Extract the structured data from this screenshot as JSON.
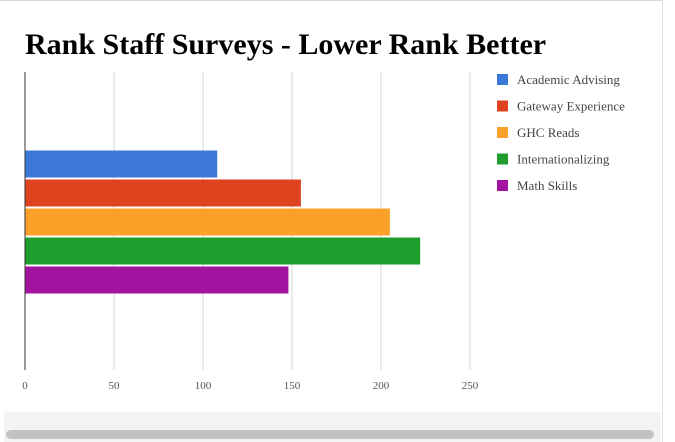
{
  "chart_data": {
    "type": "bar",
    "orientation": "horizontal",
    "title": "Rank Staff Surveys - Lower Rank Better",
    "categories": [
      ""
    ],
    "series": [
      {
        "name": "Academic Advising",
        "values": [
          108
        ],
        "color": "#3c78d8"
      },
      {
        "name": "Gateway Experience",
        "values": [
          155
        ],
        "color": "#e0431f"
      },
      {
        "name": "GHC Reads",
        "values": [
          205
        ],
        "color": "#fba129"
      },
      {
        "name": "Internationalizing",
        "values": [
          222
        ],
        "color": "#1f9e2f"
      },
      {
        "name": "Math Skills",
        "values": [
          148
        ],
        "color": "#a2139f"
      }
    ],
    "xlim": [
      0,
      250
    ],
    "x_ticks": [
      "0",
      "50",
      "100",
      "150",
      "200",
      "250"
    ],
    "grid": true,
    "legend": "right"
  }
}
